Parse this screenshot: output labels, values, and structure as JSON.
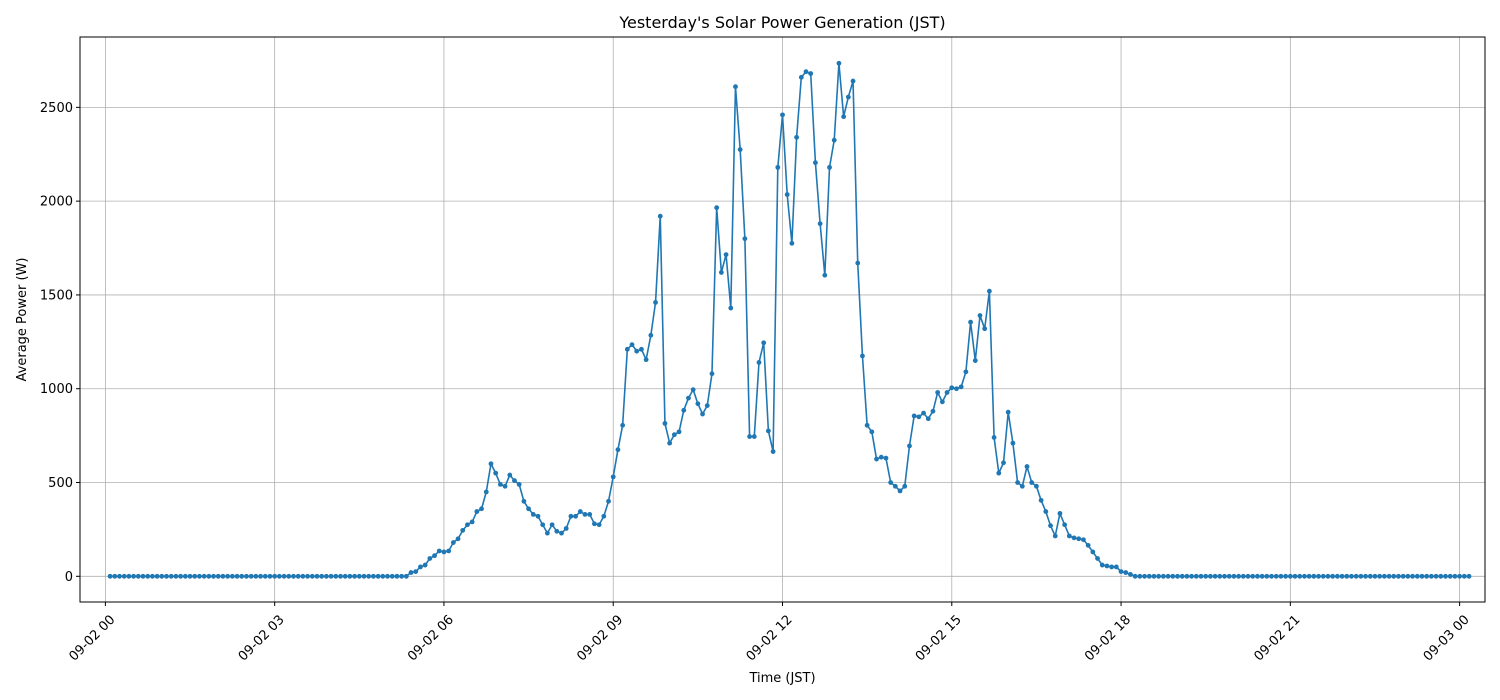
{
  "chart_data": {
    "type": "line",
    "title": "Yesterday's Solar Power Generation (JST)",
    "xlabel": "Time (JST)",
    "ylabel": "Average Power (W)",
    "x_start": "09-02 00:05",
    "x_step_minutes": 5,
    "xlim": [
      "09-01 23:33",
      "09-03 00:27"
    ],
    "ylim": [
      -137,
      2875
    ],
    "grid": true,
    "xticks": [
      {
        "value_hours": 0,
        "label": "09-02 00"
      },
      {
        "value_hours": 3,
        "label": "09-02 03"
      },
      {
        "value_hours": 6,
        "label": "09-02 06"
      },
      {
        "value_hours": 9,
        "label": "09-02 09"
      },
      {
        "value_hours": 12,
        "label": "09-02 12"
      },
      {
        "value_hours": 15,
        "label": "09-02 15"
      },
      {
        "value_hours": 18,
        "label": "09-02 18"
      },
      {
        "value_hours": 21,
        "label": "09-02 21"
      },
      {
        "value_hours": 24,
        "label": "09-03 00"
      }
    ],
    "yticks": [
      0,
      500,
      1000,
      1500,
      2000,
      2500
    ],
    "series": [
      {
        "color": "#1f77b4",
        "values": [
          0,
          0,
          0,
          0,
          0,
          0,
          0,
          0,
          0,
          0,
          0,
          0,
          0,
          0,
          0,
          0,
          0,
          0,
          0,
          0,
          0,
          0,
          0,
          0,
          0,
          0,
          0,
          0,
          0,
          0,
          0,
          0,
          0,
          0,
          0,
          0,
          0,
          0,
          0,
          0,
          0,
          0,
          0,
          0,
          0,
          0,
          0,
          0,
          0,
          0,
          0,
          0,
          0,
          0,
          0,
          0,
          0,
          0,
          0,
          0,
          0,
          0,
          0,
          0,
          20,
          25,
          50,
          60,
          95,
          110,
          135,
          130,
          135,
          180,
          200,
          245,
          275,
          290,
          345,
          360,
          450,
          600,
          550,
          490,
          480,
          540,
          510,
          490,
          400,
          360,
          330,
          320,
          275,
          230,
          275,
          240,
          230,
          255,
          320,
          320,
          345,
          330,
          330,
          280,
          275,
          320,
          400,
          530,
          675,
          805,
          1210,
          1235,
          1200,
          1210,
          1155,
          1285,
          1460,
          1920,
          815,
          710,
          755,
          770,
          885,
          950,
          995,
          920,
          865,
          910,
          1080,
          1965,
          1620,
          1715,
          1430,
          2610,
          2275,
          1800,
          745,
          745,
          1140,
          1245,
          775,
          665,
          2180,
          2460,
          2035,
          1775,
          2340,
          2660,
          2690,
          2680,
          2205,
          1880,
          1605,
          2180,
          2325,
          2735,
          2450,
          2555,
          2640,
          1670,
          1175,
          805,
          770,
          625,
          635,
          630,
          500,
          480,
          455,
          480,
          695,
          855,
          850,
          870,
          840,
          880,
          980,
          930,
          980,
          1005,
          1000,
          1010,
          1090,
          1355,
          1150,
          1390,
          1320,
          1520,
          740,
          550,
          605,
          875,
          710,
          500,
          480,
          585,
          500,
          480,
          405,
          345,
          270,
          215,
          335,
          275,
          215,
          205,
          200,
          195,
          165,
          130,
          95,
          60,
          55,
          50,
          50,
          25,
          20,
          10,
          0,
          0,
          0,
          0,
          0,
          0,
          0,
          0,
          0,
          0,
          0,
          0,
          0,
          0,
          0,
          0,
          0,
          0,
          0,
          0,
          0,
          0,
          0,
          0,
          0,
          0,
          0,
          0,
          0,
          0,
          0,
          0,
          0,
          0,
          0,
          0,
          0,
          0,
          0,
          0,
          0,
          0,
          0,
          0,
          0,
          0,
          0,
          0,
          0,
          0,
          0,
          0,
          0,
          0,
          0,
          0,
          0,
          0,
          0,
          0,
          0,
          0,
          0,
          0,
          0,
          0,
          0,
          0,
          0,
          0,
          0,
          0
        ]
      }
    ]
  }
}
